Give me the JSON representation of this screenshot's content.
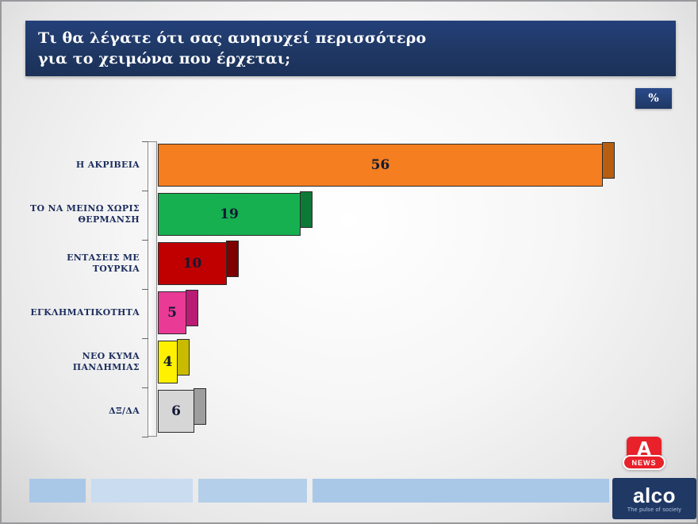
{
  "page": {
    "title_line1": "Τι θα λέγατε ότι σας ανησυχεί περισσότερο",
    "title_line2": "για το χειμώνα που έρχεται;",
    "percent_badge": "%"
  },
  "chart_data": {
    "type": "bar",
    "orientation": "horizontal",
    "title": "Τι θα λέγατε ότι σας ανησυχεί περισσότερο για το χειμώνα που έρχεται;",
    "unit": "%",
    "xlim": [
      0,
      58
    ],
    "categories": [
      "Η ΑΚΡΙΒΕΙΑ",
      "ΤΟ ΝΑ ΜΕΙΝΩ ΧΩΡΙΣ ΘΕΡΜΑΝΣΗ",
      "ΕΝΤΑΣΕΙΣ ΜΕ ΤΟΥΡΚΙΑ",
      "ΕΓΚΛΗΜΑΤΙΚΟΤΗΤΑ",
      "ΝΕΟ ΚΥΜΑ ΠΑΝΔΗΜΙΑΣ",
      "ΔΞ/ΔΑ"
    ],
    "values": [
      56,
      19,
      10,
      5,
      4,
      6
    ],
    "bar_colors": [
      "#f57e20",
      "#17b050",
      "#c00000",
      "#e93a96",
      "#fff100",
      "#d6d6d6"
    ],
    "cap_colors": [
      "#b85e10",
      "#0c7a36",
      "#7e0000",
      "#b81c74",
      "#c9bc00",
      "#9e9e9e"
    ],
    "grid": false,
    "legend": "none"
  },
  "branding": {
    "alpha_letter": "A",
    "alpha_news": "NEWS",
    "alco": "alco",
    "alco_tagline": "The pulse of society"
  },
  "colors": {
    "navy": "#1f3864",
    "alpha_red": "#e8212a"
  }
}
